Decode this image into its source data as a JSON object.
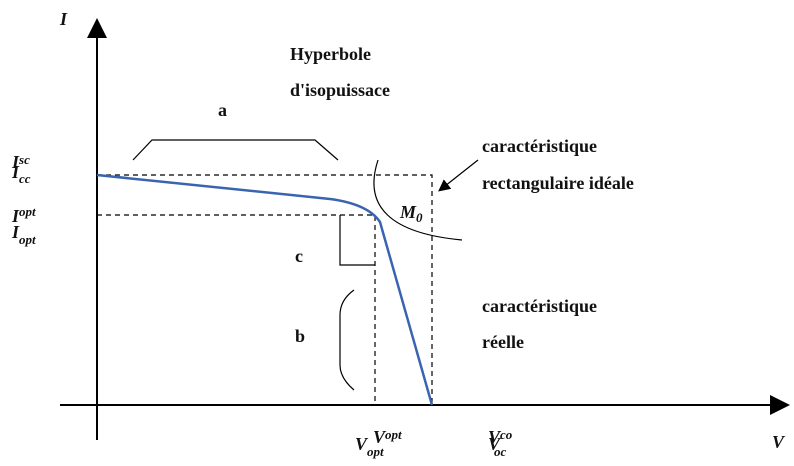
{
  "axes": {
    "y_label": "I",
    "x_label": "V"
  },
  "y_marks": [
    {
      "name": "I",
      "sub": "sc"
    },
    {
      "name": "I",
      "sub": "cc"
    },
    {
      "name": "I",
      "sub": "opt"
    },
    {
      "name": "I",
      "sub": "opt"
    }
  ],
  "x_marks": [
    {
      "name": "V",
      "sub": "opt"
    },
    {
      "name": "V",
      "sub": "opt"
    },
    {
      "name": "V",
      "sub": "co"
    },
    {
      "name": "V",
      "sub": "oc"
    }
  ],
  "annotations": {
    "hyperbola": [
      "Hyperbole",
      "d'isopuissace"
    ],
    "a": "a",
    "b": "b",
    "c": "c",
    "ideal": [
      "caractéristique",
      "rectangulaire idéale"
    ],
    "real": [
      "caractéristique",
      "réelle"
    ],
    "point": {
      "name": "M",
      "sub": "0"
    }
  }
}
